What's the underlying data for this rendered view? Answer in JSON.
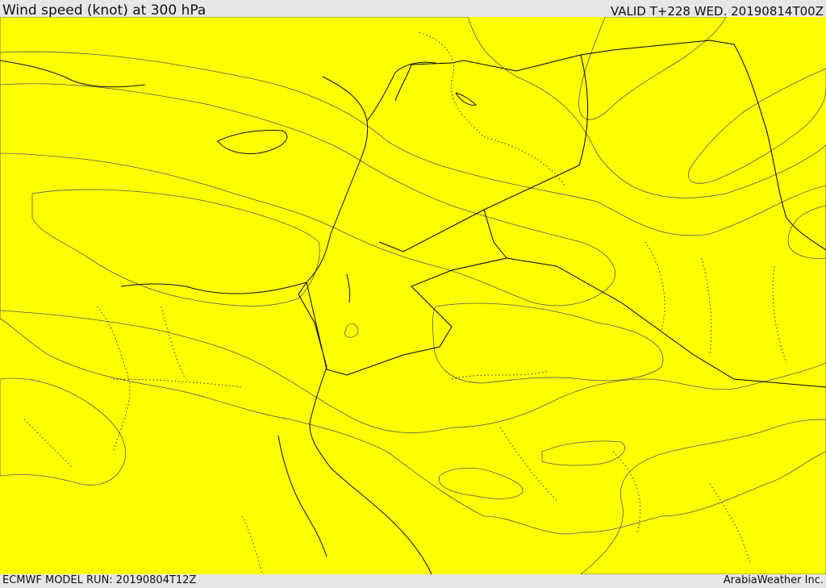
{
  "header": {
    "title": "Wind speed (knot) at 300 hPa",
    "valid": "VALID T+228 WED. 20190814T00Z"
  },
  "footer": {
    "model_run": "ECMWF MODEL RUN: 20190804T12Z",
    "credit": "ArabiaWeather Inc."
  },
  "colors": {
    "band_yellow": "#ffff00",
    "band_gold": "#ffd700",
    "band_amber": "#ffbf00",
    "band_orange": "#ffa500",
    "band_peach": "#ffdead"
  }
}
